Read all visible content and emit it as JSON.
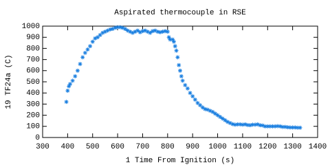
{
  "chart_data": {
    "type": "scatter",
    "title": "Aspirated thermocouple in RSE",
    "x_label": "1 Time From Ignition (s)",
    "y_label": "19 TF24a (C)",
    "color": "#1a7fe0",
    "xlim": [
      300,
      1400
    ],
    "xticks": [
      300,
      400,
      500,
      600,
      700,
      800,
      900,
      1000,
      1100,
      1200,
      1300,
      1400
    ],
    "ylim": [
      0,
      1000
    ],
    "yticks": [
      0,
      100,
      200,
      300,
      400,
      500,
      600,
      700,
      800,
      900,
      1000
    ],
    "x": [
      395,
      400,
      405,
      410,
      420,
      430,
      440,
      450,
      460,
      470,
      480,
      490,
      500,
      510,
      520,
      530,
      540,
      550,
      560,
      570,
      580,
      590,
      600,
      610,
      620,
      630,
      640,
      650,
      660,
      670,
      680,
      690,
      700,
      710,
      720,
      730,
      740,
      750,
      760,
      770,
      780,
      790,
      800,
      805,
      810,
      820,
      825,
      830,
      835,
      840,
      845,
      850,
      855,
      860,
      870,
      880,
      890,
      900,
      910,
      920,
      930,
      940,
      950,
      960,
      970,
      980,
      990,
      1000,
      1010,
      1020,
      1030,
      1040,
      1050,
      1060,
      1070,
      1080,
      1090,
      1100,
      1110,
      1120,
      1130,
      1140,
      1150,
      1160,
      1170,
      1180,
      1190,
      1200,
      1210,
      1220,
      1230,
      1240,
      1250,
      1260,
      1270,
      1280,
      1290,
      1300,
      1310,
      1320,
      1330
    ],
    "values": [
      320,
      420,
      460,
      480,
      510,
      550,
      600,
      660,
      720,
      760,
      790,
      820,
      860,
      890,
      900,
      920,
      940,
      950,
      960,
      970,
      975,
      985,
      990,
      990,
      985,
      975,
      960,
      950,
      940,
      950,
      960,
      945,
      955,
      960,
      950,
      940,
      955,
      960,
      950,
      945,
      950,
      955,
      950,
      900,
      880,
      880,
      860,
      820,
      780,
      720,
      650,
      600,
      550,
      510,
      470,
      440,
      400,
      370,
      340,
      310,
      290,
      270,
      255,
      250,
      240,
      230,
      215,
      200,
      185,
      170,
      155,
      140,
      130,
      120,
      115,
      118,
      118,
      115,
      118,
      112,
      110,
      115,
      115,
      118,
      110,
      108,
      100,
      100,
      100,
      100,
      100,
      102,
      100,
      95,
      95,
      92,
      90,
      90,
      90,
      88,
      88
    ]
  }
}
